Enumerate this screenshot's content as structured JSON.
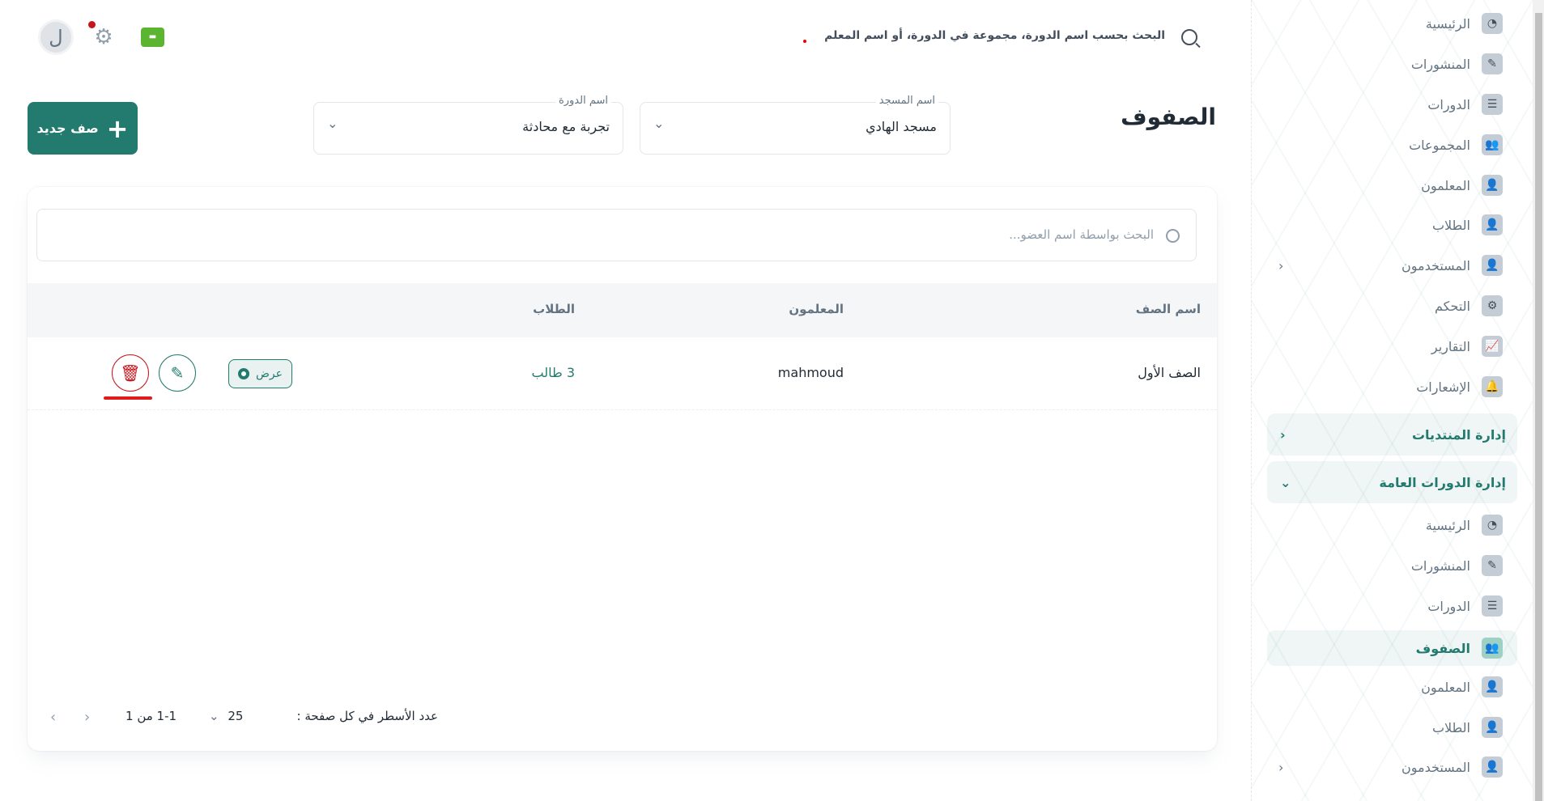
{
  "header": {
    "avatar_letter": "ل",
    "search_placeholder": "البحث بحسب اسم الدورة، مجموعة في الدورة، أو اسم المعلم"
  },
  "page": {
    "title": "الصفوف",
    "new_button": "صف جديد"
  },
  "filters": {
    "mosque": {
      "label": "اسم المسجد",
      "value": "مسجد الهادي"
    },
    "course": {
      "label": "اسم الدورة",
      "value": "تجربة مع محادثة"
    }
  },
  "table": {
    "search_placeholder": "البحث بواسطة اسم العضو...",
    "columns": [
      "اسم الصف",
      "المعلمون",
      "الطلاب"
    ],
    "rows": [
      {
        "name": "الصف الأول",
        "teachers": "mahmoud",
        "students": "3 طالب",
        "view": "عرض"
      }
    ]
  },
  "pagination": {
    "rows_per_page_label": "عدد الأسطر في كل صفحة :",
    "rows_per_page": "25",
    "range": "1-1 من 1"
  },
  "sidebar": {
    "items": [
      {
        "label": "الرئيسية",
        "icon": "dashboard-icon"
      },
      {
        "label": "المنشورات",
        "icon": "edit-icon"
      },
      {
        "label": "الدورات",
        "icon": "board-icon"
      },
      {
        "label": "المجموعات",
        "icon": "group-icon"
      },
      {
        "label": "المعلمون",
        "icon": "teacher-icon"
      },
      {
        "label": "الطلاب",
        "icon": "student-icon"
      },
      {
        "label": "المستخدمون",
        "icon": "user-icon",
        "expandable": true
      },
      {
        "label": "التحكم",
        "icon": "gear-icon"
      },
      {
        "label": "التقارير",
        "icon": "chart-icon"
      },
      {
        "label": "الإشعارات",
        "icon": "bell-icon"
      }
    ],
    "groups": [
      {
        "label": "إدارة المنتديات",
        "expanded": false
      },
      {
        "label": "إدارة الدورات العامة",
        "expanded": true
      }
    ],
    "sub_items": [
      {
        "label": "الرئيسية",
        "icon": "dashboard-icon"
      },
      {
        "label": "المنشورات",
        "icon": "edit-icon"
      },
      {
        "label": "الدورات",
        "icon": "board-icon"
      },
      {
        "label": "الصفوف",
        "icon": "group-icon",
        "active": true
      },
      {
        "label": "المعلمون",
        "icon": "teacher-icon"
      },
      {
        "label": "الطلاب",
        "icon": "student-icon"
      },
      {
        "label": "المستخدمون",
        "icon": "user-icon",
        "expandable": true
      }
    ]
  },
  "colors": {
    "primary": "#237a6e",
    "danger": "#c4161c"
  }
}
